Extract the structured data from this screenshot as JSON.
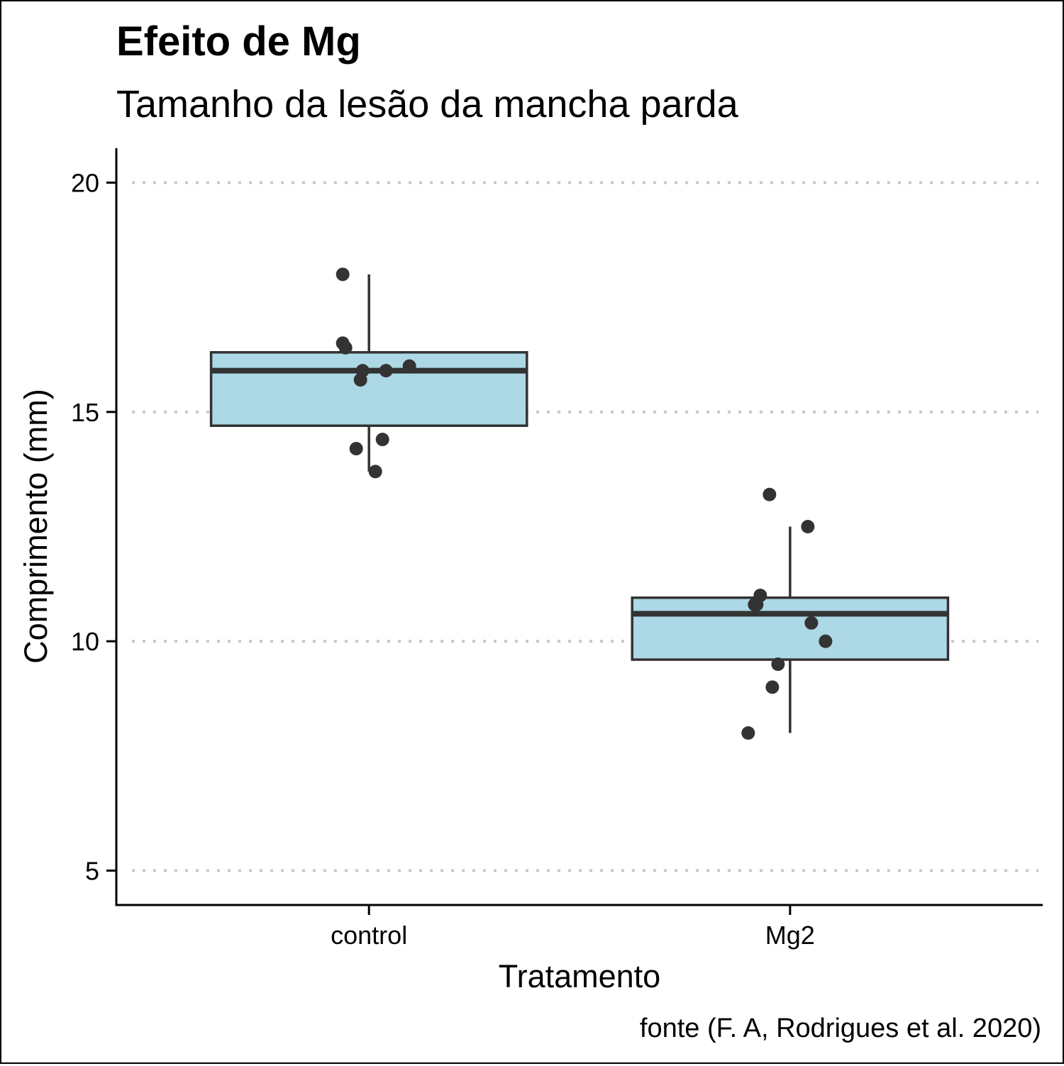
{
  "chart_data": {
    "type": "boxplot",
    "title": "Efeito de Mg",
    "subtitle": "Tamanho da lesão da mancha parda",
    "xlabel": "Tratamento",
    "ylabel": "Comprimento (mm)",
    "caption": "fonte (F. A, Rodrigues et al. 2020)",
    "ylim": [
      4.25,
      20.75
    ],
    "yticks": [
      5,
      10,
      15,
      20
    ],
    "grid": "horizontal dotted",
    "legend": "none",
    "box_fill": "#add8e6",
    "box_stroke": "#333333",
    "point_color": "#333333",
    "grid_color": "#c8c8c8",
    "categories": [
      "control",
      "Mg2"
    ],
    "boxes": [
      {
        "category": "control",
        "whisker_low": 13.7,
        "q1": 14.7,
        "median": 15.9,
        "q3": 16.3,
        "whisker_high": 18.0,
        "points": [
          18.0,
          16.5,
          16.4,
          15.9,
          15.9,
          16.0,
          15.7,
          14.4,
          14.2,
          13.7
        ]
      },
      {
        "category": "Mg2",
        "whisker_low": 8.0,
        "q1": 9.6,
        "median": 10.6,
        "q3": 10.95,
        "whisker_high": 12.5,
        "points": [
          13.2,
          12.5,
          11.0,
          10.8,
          10.8,
          10.4,
          10.0,
          9.5,
          9.0,
          8.0
        ]
      }
    ]
  }
}
